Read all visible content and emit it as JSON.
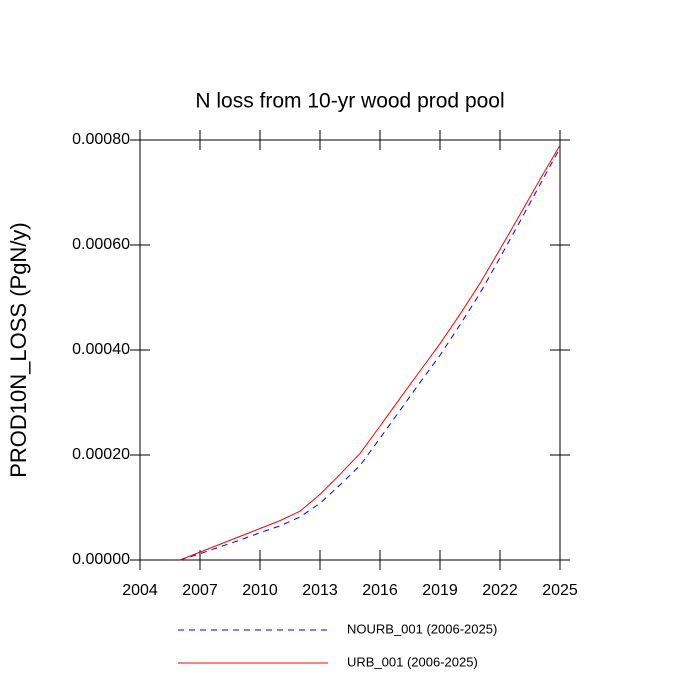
{
  "chart_data": {
    "type": "line",
    "title": "N loss from 10-yr wood prod pool",
    "y_label": "PROD10N_LOSS  (PgN/y)",
    "x": [
      2006,
      2007,
      2008,
      2009,
      2010,
      2011,
      2012,
      2013,
      2014,
      2015,
      2016,
      2017,
      2018,
      2019,
      2020,
      2021,
      2022,
      2023,
      2024,
      2025
    ],
    "series": [
      {
        "name": "NOURB_001 (2006-2025)",
        "color": "#0000ff",
        "dash": true,
        "values": [
          0,
          1.2e-05,
          2.5e-05,
          3.8e-05,
          5.2e-05,
          6.5e-05,
          8.2e-05,
          0.000108,
          0.000143,
          0.00018,
          0.000232,
          0.000285,
          0.000338,
          0.00039,
          0.000448,
          0.000508,
          0.000576,
          0.000645,
          0.000715,
          0.000785
        ]
      },
      {
        "name": "URB_001 (2006-2025)",
        "color": "#ff0000",
        "dash": false,
        "values": [
          0,
          1.5e-05,
          3e-05,
          4.5e-05,
          6e-05,
          7.5e-05,
          9.3e-05,
          0.000125,
          0.000163,
          0.000203,
          0.000255,
          0.000308,
          0.00036,
          0.000412,
          0.000468,
          0.000527,
          0.000592,
          0.000658,
          0.000725,
          0.00079
        ]
      }
    ],
    "xlim": [
      2004,
      2025
    ],
    "xticks": [
      2004,
      2007,
      2010,
      2013,
      2016,
      2019,
      2022,
      2025
    ],
    "ylim": [
      0,
      0.0008
    ],
    "yticks": [
      {
        "value": 0,
        "label": "0.00000"
      },
      {
        "value": 0.0002,
        "label": "0.00020"
      },
      {
        "value": 0.0004,
        "label": "0.00040"
      },
      {
        "value": 0.0006,
        "label": "0.00060"
      },
      {
        "value": 0.0008,
        "label": "0.00080"
      }
    ]
  }
}
